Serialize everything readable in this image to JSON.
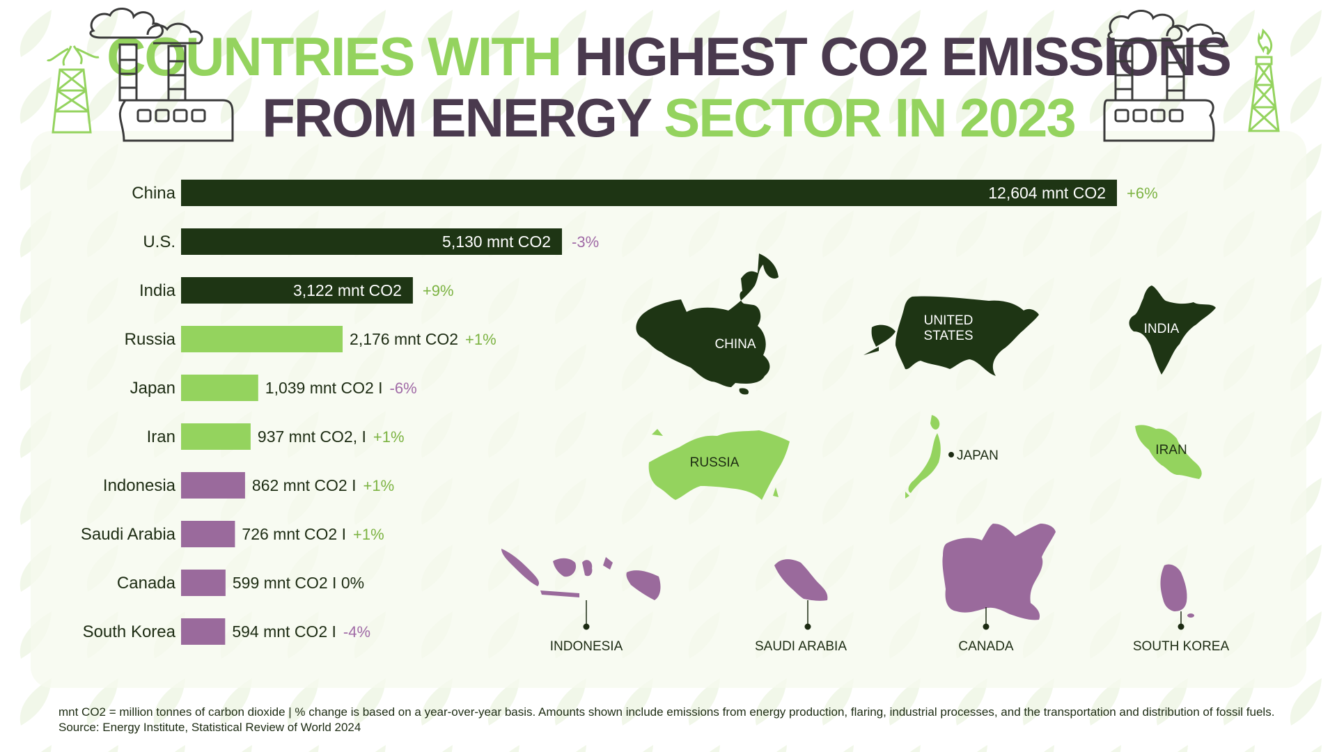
{
  "title": {
    "line1_green": "COUNTRIES WITH",
    "line1_dark": "HIGHEST CO2 EMISSIONS",
    "line2_dark": "FROM ENERGY",
    "line2_green": "SECTOR IN 2023"
  },
  "colors": {
    "dark_green": "#1e3514",
    "light_green": "#94d35e",
    "purple": "#9a6a9c",
    "title_dark": "#4a3a4e",
    "positive_change": "#7cb342",
    "negative_change": "#a06aa6"
  },
  "chart_data": {
    "type": "bar",
    "orientation": "horizontal",
    "unit": "mnt CO2",
    "categories": [
      "China",
      "U.S.",
      "India",
      "Russia",
      "Japan",
      "Iran",
      "Indonesia",
      "Saudi Arabia",
      "Canada",
      "South Korea"
    ],
    "values": [
      12604,
      5130,
      3122,
      2176,
      1039,
      937,
      862,
      726,
      599,
      594
    ],
    "value_labels": [
      "12,604 mnt CO2",
      "5,130 mnt CO2",
      "3,122 mnt CO2",
      "2,176 mnt CO2",
      "1,039 mnt CO2  I",
      "937 mnt CO2,    I",
      "862 mnt CO2    I",
      "726 mnt CO2 I",
      "599 mnt CO2 I 0%",
      "594 mnt CO2 I"
    ],
    "changes": [
      "+6%",
      "-3%",
      "+9%",
      "+1%",
      "-6%",
      "+1%",
      "+1%",
      "+1%",
      "",
      "-4%"
    ],
    "color_groups": [
      "dark",
      "dark",
      "dark",
      "light",
      "light",
      "light",
      "purple",
      "purple",
      "purple",
      "purple"
    ],
    "xlim": [
      0,
      12604
    ]
  },
  "maps": [
    {
      "name": "CHINA",
      "group": "dark"
    },
    {
      "name": "UNITED STATES",
      "group": "dark"
    },
    {
      "name": "INDIA",
      "group": "dark"
    },
    {
      "name": "RUSSIA",
      "group": "light"
    },
    {
      "name": "JAPAN",
      "group": "light"
    },
    {
      "name": "IRAN",
      "group": "light"
    },
    {
      "name": "INDONESIA",
      "group": "purple"
    },
    {
      "name": "SAUDI ARABIA",
      "group": "purple"
    },
    {
      "name": "CANADA",
      "group": "purple"
    },
    {
      "name": "SOUTH KOREA",
      "group": "purple"
    }
  ],
  "footnote": "mnt CO2 = million tonnes of carbon dioxide | % change is based on a year-over-year basis. Amounts shown include emissions from energy production, flaring, industrial processes, and the transportation and distribution of fossil fuels. Source: Energy Institute, Statistical Review of World 2024"
}
